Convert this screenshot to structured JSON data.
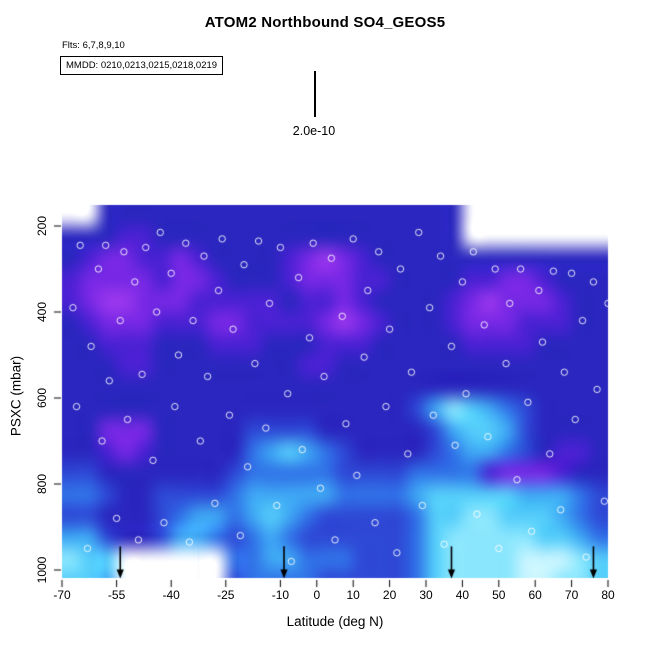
{
  "title": "ATOM2 Northbound SO4_GEOS5",
  "annotations": {
    "flights": "Flts: 6,7,8,9,10",
    "mmdd": "MMDD: 0210,0213,0215,0218,0219",
    "scale_marker_label": "2.0e-10"
  },
  "chart_data": {
    "type": "heatmap",
    "title": "ATOM2 Northbound SO4_GEOS5",
    "xlabel": "Latitude (deg N)",
    "ylabel": "PSXC (mbar)",
    "xlim": [
      -70,
      80
    ],
    "ylim": [
      1020,
      150
    ],
    "x_ticks": [
      -70,
      -55,
      -40,
      -25,
      -10,
      0,
      10,
      20,
      30,
      40,
      50,
      60,
      70,
      80
    ],
    "y_ticks": [
      200,
      400,
      600,
      800,
      1000
    ],
    "scale_marker_value": "2.0e-10",
    "lat_bin_start": -70,
    "lat_bin_width": 5,
    "pressure_bin_start": 150,
    "pressure_bin_width": 50,
    "palette_note": "index 0 = lowest SO4 (bright purple) through 9 = highest SO4 (pale cyan)",
    "palette": [
      "#9a37ee",
      "#7728e4",
      "#4b21d4",
      "#2a26bf",
      "#2e49d6",
      "#3173e8",
      "#3fa8f4",
      "#55cdfa",
      "#8ae6fd",
      "#c8f5ff"
    ],
    "grid": [
      [
        null,
        null,
        3,
        3,
        3,
        3,
        3,
        3,
        3,
        3,
        3,
        3,
        3,
        3,
        3,
        3,
        3,
        3,
        3,
        3,
        3,
        3,
        null,
        null,
        null,
        null,
        null,
        null,
        null,
        null
      ],
      [
        3,
        3,
        3,
        2,
        2,
        3,
        3,
        3,
        3,
        3,
        3,
        3,
        3,
        3,
        3,
        3,
        3,
        3,
        3,
        3,
        3,
        3,
        null,
        null,
        null,
        null,
        null,
        null,
        null,
        null
      ],
      [
        3,
        2,
        1,
        1,
        2,
        2,
        1,
        2,
        3,
        3,
        3,
        3,
        2,
        1,
        0,
        1,
        2,
        3,
        3,
        3,
        3,
        3,
        3,
        3,
        3,
        3,
        3,
        3,
        3,
        3
      ],
      [
        2,
        1,
        1,
        1,
        1,
        2,
        1,
        1,
        2,
        3,
        3,
        3,
        2,
        1,
        1,
        1,
        2,
        2,
        3,
        3,
        3,
        3,
        2,
        2,
        1,
        1,
        2,
        3,
        3,
        3
      ],
      [
        2,
        1,
        0,
        0,
        1,
        1,
        1,
        2,
        2,
        2,
        2,
        2,
        3,
        2,
        2,
        1,
        2,
        3,
        3,
        3,
        3,
        2,
        1,
        0,
        1,
        1,
        1,
        2,
        3,
        3
      ],
      [
        3,
        2,
        1,
        1,
        1,
        2,
        2,
        2,
        1,
        1,
        2,
        2,
        2,
        2,
        1,
        0,
        1,
        2,
        3,
        3,
        3,
        2,
        1,
        1,
        1,
        2,
        2,
        2,
        3,
        3
      ],
      [
        3,
        3,
        2,
        2,
        2,
        3,
        3,
        3,
        2,
        2,
        2,
        3,
        3,
        3,
        2,
        2,
        2,
        3,
        3,
        3,
        3,
        3,
        2,
        2,
        2,
        2,
        3,
        3,
        3,
        3
      ],
      [
        3,
        3,
        3,
        2,
        2,
        3,
        3,
        3,
        3,
        3,
        3,
        3,
        3,
        2,
        2,
        3,
        3,
        3,
        3,
        3,
        3,
        3,
        3,
        3,
        3,
        3,
        3,
        3,
        3,
        3
      ],
      [
        3,
        3,
        3,
        3,
        3,
        3,
        3,
        3,
        3,
        3,
        3,
        3,
        3,
        3,
        3,
        3,
        3,
        3,
        3,
        3,
        3,
        3,
        3,
        3,
        3,
        3,
        3,
        3,
        3,
        3
      ],
      [
        3,
        3,
        3,
        3,
        3,
        3,
        3,
        3,
        3,
        3,
        3,
        3,
        3,
        3,
        3,
        3,
        3,
        3,
        3,
        4,
        6,
        8,
        7,
        6,
        5,
        4,
        3,
        3,
        3,
        3
      ],
      [
        3,
        3,
        1,
        1,
        1,
        3,
        3,
        3,
        3,
        3,
        4,
        4,
        4,
        4,
        3,
        3,
        3,
        3,
        3,
        3,
        4,
        6,
        7,
        7,
        6,
        4,
        3,
        3,
        3,
        3
      ],
      [
        3,
        3,
        2,
        1,
        2,
        3,
        3,
        3,
        3,
        3,
        5,
        6,
        7,
        6,
        5,
        4,
        3,
        3,
        3,
        3,
        4,
        5,
        6,
        6,
        5,
        4,
        3,
        2,
        2,
        3
      ],
      [
        4,
        4,
        3,
        3,
        3,
        3,
        3,
        3,
        3,
        4,
        5,
        5,
        5,
        5,
        5,
        4,
        4,
        4,
        4,
        5,
        5,
        5,
        5,
        2,
        1,
        1,
        1,
        2,
        3,
        3
      ],
      [
        5,
        5,
        4,
        3,
        3,
        4,
        4,
        4,
        4,
        5,
        6,
        6,
        6,
        6,
        6,
        5,
        5,
        5,
        5,
        6,
        7,
        7,
        7,
        7,
        7,
        6,
        6,
        6,
        5,
        4
      ],
      [
        4,
        4,
        3,
        3,
        3,
        4,
        5,
        6,
        6,
        5,
        6,
        7,
        6,
        5,
        4,
        4,
        4,
        4,
        4,
        5,
        7,
        7,
        8,
        8,
        7,
        7,
        7,
        6,
        5,
        4
      ],
      [
        6,
        6,
        4,
        3,
        3,
        4,
        6,
        6,
        5,
        4,
        5,
        6,
        5,
        4,
        4,
        4,
        4,
        4,
        4,
        5,
        7,
        8,
        8,
        8,
        8,
        8,
        7,
        7,
        6,
        5
      ],
      [
        8,
        7,
        7,
        null,
        null,
        null,
        null,
        null,
        null,
        5,
        5,
        6,
        6,
        5,
        5,
        5,
        4,
        4,
        4,
        5,
        7,
        8,
        8,
        8,
        8,
        9,
        9,
        9,
        8,
        7
      ],
      [
        7,
        7,
        6,
        null,
        null,
        null,
        null,
        null,
        null,
        4,
        5,
        5,
        5,
        5,
        4,
        4,
        4,
        4,
        4,
        5,
        7,
        8,
        8,
        8,
        8,
        9,
        9,
        8,
        8,
        7
      ]
    ],
    "sample_points": [
      [
        -67,
        390
      ],
      [
        -66,
        620
      ],
      [
        -65,
        245
      ],
      [
        -63,
        950
      ],
      [
        -62,
        480
      ],
      [
        -60,
        300
      ],
      [
        -59,
        700
      ],
      [
        -58,
        245
      ],
      [
        -57,
        560
      ],
      [
        -55,
        880
      ],
      [
        -54,
        420
      ],
      [
        -53,
        260
      ],
      [
        -52,
        650
      ],
      [
        -50,
        330
      ],
      [
        -49,
        930
      ],
      [
        -48,
        545
      ],
      [
        -47,
        250
      ],
      [
        -45,
        745
      ],
      [
        -44,
        400
      ],
      [
        -43,
        215
      ],
      [
        -42,
        890
      ],
      [
        -40,
        310
      ],
      [
        -39,
        620
      ],
      [
        -38,
        500
      ],
      [
        -36,
        240
      ],
      [
        -35,
        935
      ],
      [
        -34,
        420
      ],
      [
        -32,
        700
      ],
      [
        -31,
        270
      ],
      [
        -30,
        550
      ],
      [
        -28,
        845
      ],
      [
        -27,
        350
      ],
      [
        -26,
        230
      ],
      [
        -24,
        640
      ],
      [
        -23,
        440
      ],
      [
        -21,
        920
      ],
      [
        -20,
        290
      ],
      [
        -19,
        760
      ],
      [
        -17,
        520
      ],
      [
        -16,
        235
      ],
      [
        -14,
        670
      ],
      [
        -13,
        380
      ],
      [
        -11,
        850
      ],
      [
        -10,
        250
      ],
      [
        -8,
        590
      ],
      [
        -7,
        980
      ],
      [
        -5,
        320
      ],
      [
        -4,
        720
      ],
      [
        -2,
        460
      ],
      [
        -1,
        240
      ],
      [
        1,
        810
      ],
      [
        2,
        550
      ],
      [
        4,
        275
      ],
      [
        5,
        930
      ],
      [
        7,
        410
      ],
      [
        8,
        660
      ],
      [
        10,
        230
      ],
      [
        11,
        780
      ],
      [
        13,
        505
      ],
      [
        14,
        350
      ],
      [
        16,
        890
      ],
      [
        17,
        260
      ],
      [
        19,
        620
      ],
      [
        20,
        440
      ],
      [
        22,
        960
      ],
      [
        23,
        300
      ],
      [
        25,
        730
      ],
      [
        26,
        540
      ],
      [
        28,
        215
      ],
      [
        29,
        850
      ],
      [
        31,
        390
      ],
      [
        32,
        640
      ],
      [
        34,
        270
      ],
      [
        35,
        940
      ],
      [
        37,
        480
      ],
      [
        38,
        710
      ],
      [
        40,
        330
      ],
      [
        41,
        590
      ],
      [
        43,
        260
      ],
      [
        44,
        870
      ],
      [
        46,
        430
      ],
      [
        47,
        690
      ],
      [
        49,
        300
      ],
      [
        50,
        950
      ],
      [
        52,
        520
      ],
      [
        53,
        380
      ],
      [
        55,
        790
      ],
      [
        56,
        300
      ],
      [
        58,
        610
      ],
      [
        59,
        910
      ],
      [
        61,
        350
      ],
      [
        62,
        470
      ],
      [
        64,
        730
      ],
      [
        65,
        305
      ],
      [
        67,
        860
      ],
      [
        68,
        540
      ],
      [
        70,
        310
      ],
      [
        71,
        650
      ],
      [
        73,
        420
      ],
      [
        74,
        970
      ],
      [
        76,
        330
      ],
      [
        77,
        580
      ],
      [
        79,
        840
      ],
      [
        80,
        380
      ]
    ],
    "arrow_latitudes": [
      -54,
      -9,
      37,
      76
    ]
  }
}
